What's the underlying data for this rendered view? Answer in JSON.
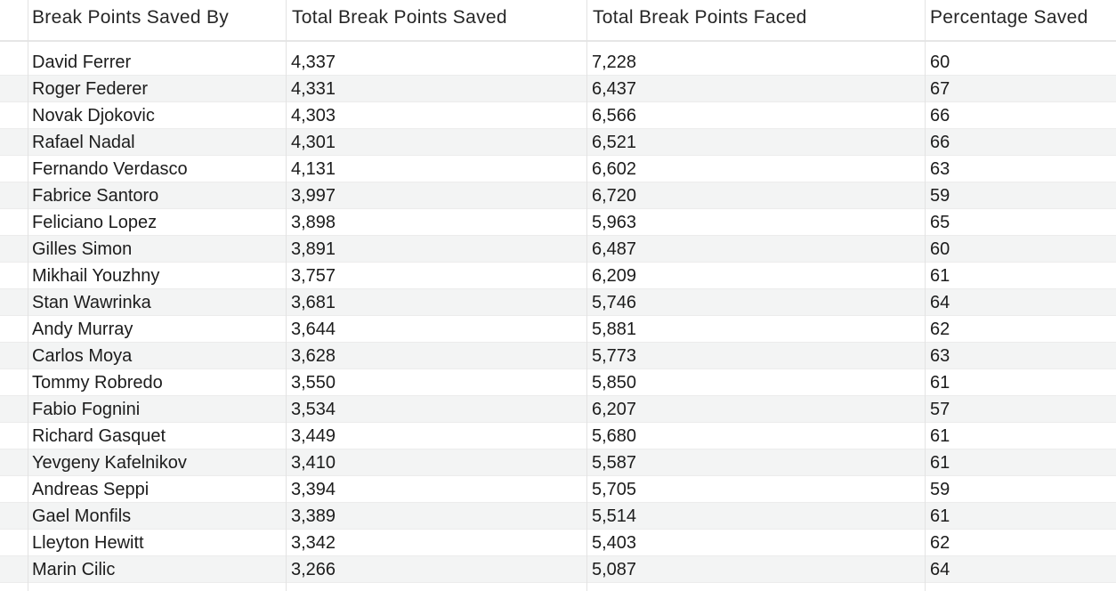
{
  "table": {
    "columns": [
      "Break Points Saved By",
      "Total Break Points Saved",
      "Total Break Points Faced",
      "Percentage Saved"
    ],
    "rows": [
      [
        "David Ferrer",
        "4,337",
        "7,228",
        "60"
      ],
      [
        "Roger Federer",
        "4,331",
        "6,437",
        "67"
      ],
      [
        "Novak Djokovic",
        "4,303",
        "6,566",
        "66"
      ],
      [
        "Rafael Nadal",
        "4,301",
        "6,521",
        "66"
      ],
      [
        "Fernando Verdasco",
        "4,131",
        "6,602",
        "63"
      ],
      [
        "Fabrice Santoro",
        "3,997",
        "6,720",
        "59"
      ],
      [
        "Feliciano Lopez",
        "3,898",
        "5,963",
        "65"
      ],
      [
        "Gilles Simon",
        "3,891",
        "6,487",
        "60"
      ],
      [
        "Mikhail Youzhny",
        "3,757",
        "6,209",
        "61"
      ],
      [
        "Stan Wawrinka",
        "3,681",
        "5,746",
        "64"
      ],
      [
        "Andy Murray",
        "3,644",
        "5,881",
        "62"
      ],
      [
        "Carlos Moya",
        "3,628",
        "5,773",
        "63"
      ],
      [
        "Tommy Robredo",
        "3,550",
        "5,850",
        "61"
      ],
      [
        "Fabio Fognini",
        "3,534",
        "6,207",
        "57"
      ],
      [
        "Richard Gasquet",
        "3,449",
        "5,680",
        "61"
      ],
      [
        "Yevgeny Kafelnikov",
        "3,410",
        "5,587",
        "61"
      ],
      [
        "Andreas Seppi",
        "3,394",
        "5,705",
        "59"
      ],
      [
        "Gael Monfils",
        "3,389",
        "5,514",
        "61"
      ],
      [
        "Lleyton Hewitt",
        "3,342",
        "5,403",
        "62"
      ],
      [
        "Marin Cilic",
        "3,266",
        "5,087",
        "64"
      ]
    ]
  }
}
